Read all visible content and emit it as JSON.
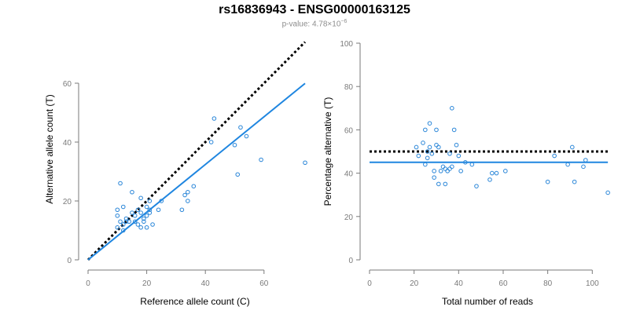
{
  "title": "rs16836943 - ENSG00000163125",
  "subtitle": {
    "prefix": "p-value: 4.78×10",
    "exponent": "−6"
  },
  "colors": {
    "points": "#2a86d8",
    "fit_line": "#1f86e0",
    "reference": "#000000",
    "axis": "#7a7a7a"
  },
  "chart_data": [
    {
      "type": "scatter",
      "title": "",
      "xlabel": "Reference allele count (C)",
      "ylabel": "Alternative allele count (T)",
      "xlim": [
        0,
        75
      ],
      "ylim": [
        0,
        75
      ],
      "xticks": [
        0,
        20,
        40,
        60
      ],
      "yticks": [
        0,
        20,
        40,
        60
      ],
      "points": [
        [
          10,
          17
        ],
        [
          10,
          15
        ],
        [
          10,
          11
        ],
        [
          11,
          26
        ],
        [
          11,
          13
        ],
        [
          12,
          12
        ],
        [
          12,
          18
        ],
        [
          12,
          10
        ],
        [
          13,
          14
        ],
        [
          13,
          13
        ],
        [
          14,
          13
        ],
        [
          15,
          16
        ],
        [
          15,
          23
        ],
        [
          16,
          15
        ],
        [
          16,
          13
        ],
        [
          17,
          12
        ],
        [
          17,
          17
        ],
        [
          18,
          11
        ],
        [
          18,
          16
        ],
        [
          18,
          21
        ],
        [
          19,
          14
        ],
        [
          19,
          13
        ],
        [
          20,
          15
        ],
        [
          20,
          11
        ],
        [
          20,
          18
        ],
        [
          21,
          16
        ],
        [
          21,
          17
        ],
        [
          21,
          20
        ],
        [
          22,
          12
        ],
        [
          24,
          17
        ],
        [
          25,
          20
        ],
        [
          32,
          17
        ],
        [
          33,
          22
        ],
        [
          34,
          23
        ],
        [
          34,
          20
        ],
        [
          36,
          25
        ],
        [
          42,
          40
        ],
        [
          43,
          48
        ],
        [
          50,
          39
        ],
        [
          51,
          29
        ],
        [
          52,
          45
        ],
        [
          54,
          42
        ],
        [
          59,
          34
        ],
        [
          74,
          33
        ]
      ],
      "reference_line": {
        "style": "dotted",
        "slope": 1,
        "intercept": 0,
        "x_range": [
          0,
          74
        ]
      },
      "fit_line": {
        "style": "solid",
        "slope": 0.81,
        "intercept": 0,
        "x_range": [
          0,
          74
        ]
      }
    },
    {
      "type": "scatter",
      "title": "",
      "xlabel": "Total number of reads",
      "ylabel": "Percentage alternative (T)",
      "xlim": [
        0,
        107
      ],
      "ylim": [
        0,
        100
      ],
      "xticks": [
        0,
        20,
        40,
        60,
        80,
        100
      ],
      "yticks": [
        0,
        20,
        40,
        60,
        80,
        100
      ],
      "points": [
        [
          21,
          52
        ],
        [
          22,
          48
        ],
        [
          24,
          54
        ],
        [
          25,
          60
        ],
        [
          25,
          44
        ],
        [
          26,
          50
        ],
        [
          26,
          47
        ],
        [
          27,
          63
        ],
        [
          27,
          52
        ],
        [
          28,
          49
        ],
        [
          29,
          41
        ],
        [
          29,
          38
        ],
        [
          30,
          60
        ],
        [
          30,
          53
        ],
        [
          31,
          52
        ],
        [
          31,
          35
        ],
        [
          32,
          41
        ],
        [
          33,
          43
        ],
        [
          34,
          35
        ],
        [
          34,
          42
        ],
        [
          35,
          41
        ],
        [
          36,
          42
        ],
        [
          36,
          49
        ],
        [
          37,
          70
        ],
        [
          37,
          43
        ],
        [
          38,
          60
        ],
        [
          39,
          53
        ],
        [
          40,
          48
        ],
        [
          41,
          41
        ],
        [
          43,
          45
        ],
        [
          46,
          44
        ],
        [
          48,
          34
        ],
        [
          54,
          37
        ],
        [
          55,
          40
        ],
        [
          57,
          40
        ],
        [
          61,
          41
        ],
        [
          80,
          36
        ],
        [
          83,
          48
        ],
        [
          89,
          44
        ],
        [
          91,
          52
        ],
        [
          92,
          36
        ],
        [
          96,
          43
        ],
        [
          97,
          46
        ],
        [
          107,
          31
        ]
      ],
      "reference_line": {
        "style": "dotted",
        "y": 50,
        "x_range": [
          0,
          107
        ]
      },
      "fit_line": {
        "style": "solid",
        "y": 45,
        "x_range": [
          0,
          107
        ]
      }
    }
  ]
}
